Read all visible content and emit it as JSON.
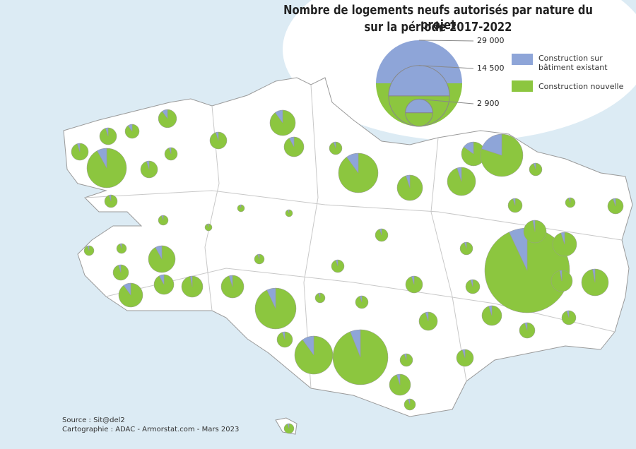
{
  "title": [
    "Nombre de logements neufs autorisés par nature du projet",
    "sur la période 2017-2022"
  ],
  "legend": {
    "sizes": [
      {
        "value": 29000,
        "label": "29 000"
      },
      {
        "value": 14500,
        "label": "14 500"
      },
      {
        "value": 2900,
        "label": "2 900"
      }
    ],
    "items": [
      {
        "label": "Construction sur bâtiment existant",
        "color": "#8ea5d8"
      },
      {
        "label": "Construction nouvelle",
        "color": "#8cc63f"
      }
    ]
  },
  "source": "Source : Sit@del2",
  "credit": "Cartographie : ADAC - Armorstat.com - Mars 2023",
  "pies": [
    {
      "existing": 130,
      "new": 1170
    },
    {
      "existing": 56,
      "new": 1064
    },
    {
      "existing": 78,
      "new": 702
    },
    {
      "existing": 56,
      "new": 1064
    },
    {
      "existing": 490,
      "new": 5620
    },
    {
      "existing": 56,
      "new": 1064
    },
    {
      "existing": 32,
      "new": 598
    },
    {
      "existing": 56,
      "new": 1064
    },
    {
      "existing": 253,
      "new": 2277
    },
    {
      "existing": 122,
      "new": 1408
    },
    {
      "existing": 32,
      "new": 598
    },
    {
      "existing": 611,
      "new": 5499
    },
    {
      "existing": 127,
      "new": 2403
    },
    {
      "existing": 156,
      "new": 2964
    },
    {
      "existing": 338,
      "new": 1912
    },
    {
      "existing": 1402,
      "new": 5608
    },
    {
      "existing": 32,
      "new": 598
    },
    {
      "existing": 39,
      "new": 741
    },
    {
      "existing": 19,
      "new": 361
    },
    {
      "existing": 47,
      "new": 893
    },
    {
      "existing": 32,
      "new": 598
    },
    {
      "existing": 19,
      "new": 361
    },
    {
      "existing": 19,
      "new": 361
    },
    {
      "existing": 19,
      "new": 361
    },
    {
      "existing": 225,
      "new": 2585
    },
    {
      "existing": 47,
      "new": 893
    },
    {
      "existing": 122,
      "new": 1408
    },
    {
      "existing": 53,
      "new": 1697
    },
    {
      "existing": 225,
      "new": 2025
    },
    {
      "existing": 10,
      "new": 185
    },
    {
      "existing": 10,
      "new": 185
    },
    {
      "existing": 10,
      "new": 185
    },
    {
      "existing": 19,
      "new": 361
    },
    {
      "existing": 100,
      "new": 1900
    },
    {
      "existing": 459,
      "new": 6091
    },
    {
      "existing": 19,
      "new": 361
    },
    {
      "existing": 32,
      "new": 598
    },
    {
      "existing": 32,
      "new": 598
    },
    {
      "existing": 32,
      "new": 598
    },
    {
      "existing": 1964,
      "new": 26096
    },
    {
      "existing": 60,
      "new": 1940
    },
    {
      "existing": 113,
      "new": 2137
    },
    {
      "existing": 53,
      "new": 1697
    },
    {
      "existing": 84,
      "new": 2726
    },
    {
      "existing": 56,
      "new": 1064
    },
    {
      "existing": 39,
      "new": 741
    },
    {
      "existing": 32,
      "new": 598
    },
    {
      "existing": 66,
      "new": 1254
    },
    {
      "existing": 77,
      "new": 1453
    },
    {
      "existing": 47,
      "new": 893
    },
    {
      "existing": 39,
      "new": 741
    },
    {
      "existing": 47,
      "new": 893
    },
    {
      "existing": 568,
      "new": 5112
    },
    {
      "existing": 712,
      "new": 11148
    },
    {
      "existing": 32,
      "new": 598
    },
    {
      "existing": 56,
      "new": 1064
    },
    {
      "existing": 88,
      "new": 1662
    },
    {
      "existing": 25,
      "new": 475
    },
    {
      "existing": 19,
      "new": 361
    }
  ]
}
